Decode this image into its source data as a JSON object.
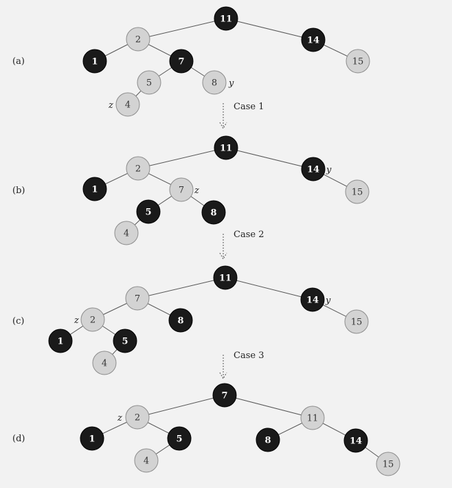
{
  "panels": [
    {
      "label": "(a)",
      "nodes": [
        {
          "id": "n11",
          "key": "11",
          "color": "black"
        },
        {
          "id": "n2",
          "key": "2",
          "color": "red"
        },
        {
          "id": "n14",
          "key": "14",
          "color": "black"
        },
        {
          "id": "n1",
          "key": "1",
          "color": "black"
        },
        {
          "id": "n7",
          "key": "7",
          "color": "black"
        },
        {
          "id": "n15",
          "key": "15",
          "color": "red"
        },
        {
          "id": "n5",
          "key": "5",
          "color": "red"
        },
        {
          "id": "n8",
          "key": "8",
          "color": "red",
          "tag": "y"
        },
        {
          "id": "n4",
          "key": "4",
          "color": "red",
          "tag": "z"
        }
      ],
      "edges": [
        [
          "n11",
          "n2"
        ],
        [
          "n11",
          "n14"
        ],
        [
          "n2",
          "n1"
        ],
        [
          "n2",
          "n7"
        ],
        [
          "n14",
          "n15"
        ],
        [
          "n7",
          "n5"
        ],
        [
          "n7",
          "n8"
        ],
        [
          "n5",
          "n4"
        ]
      ]
    },
    {
      "label": "(b)",
      "nodes": [
        {
          "id": "n11",
          "key": "11",
          "color": "black"
        },
        {
          "id": "n2",
          "key": "2",
          "color": "red"
        },
        {
          "id": "n14",
          "key": "14",
          "color": "black",
          "tag": "y"
        },
        {
          "id": "n1",
          "key": "1",
          "color": "black"
        },
        {
          "id": "n7",
          "key": "7",
          "color": "red",
          "tag": "z"
        },
        {
          "id": "n15",
          "key": "15",
          "color": "red"
        },
        {
          "id": "n5",
          "key": "5",
          "color": "black"
        },
        {
          "id": "n8",
          "key": "8",
          "color": "black"
        },
        {
          "id": "n4",
          "key": "4",
          "color": "red"
        }
      ],
      "edges": [
        [
          "n11",
          "n2"
        ],
        [
          "n11",
          "n14"
        ],
        [
          "n2",
          "n1"
        ],
        [
          "n2",
          "n7"
        ],
        [
          "n14",
          "n15"
        ],
        [
          "n7",
          "n5"
        ],
        [
          "n7",
          "n8"
        ],
        [
          "n5",
          "n4"
        ]
      ]
    },
    {
      "label": "(c)",
      "nodes": [
        {
          "id": "n11",
          "key": "11",
          "color": "black"
        },
        {
          "id": "n7",
          "key": "7",
          "color": "red"
        },
        {
          "id": "n14",
          "key": "14",
          "color": "black",
          "tag": "y"
        },
        {
          "id": "n2",
          "key": "2",
          "color": "red",
          "tag": "z"
        },
        {
          "id": "n8",
          "key": "8",
          "color": "black"
        },
        {
          "id": "n15",
          "key": "15",
          "color": "red"
        },
        {
          "id": "n1",
          "key": "1",
          "color": "black"
        },
        {
          "id": "n5",
          "key": "5",
          "color": "black"
        },
        {
          "id": "n4",
          "key": "4",
          "color": "red"
        }
      ],
      "edges": [
        [
          "n11",
          "n7"
        ],
        [
          "n11",
          "n14"
        ],
        [
          "n7",
          "n2"
        ],
        [
          "n7",
          "n8"
        ],
        [
          "n14",
          "n15"
        ],
        [
          "n2",
          "n1"
        ],
        [
          "n2",
          "n5"
        ],
        [
          "n5",
          "n4"
        ]
      ]
    },
    {
      "label": "(d)",
      "nodes": [
        {
          "id": "n7",
          "key": "7",
          "color": "black"
        },
        {
          "id": "n2",
          "key": "2",
          "color": "red",
          "tag": "z"
        },
        {
          "id": "n11",
          "key": "11",
          "color": "red"
        },
        {
          "id": "n1",
          "key": "1",
          "color": "black"
        },
        {
          "id": "n5",
          "key": "5",
          "color": "black"
        },
        {
          "id": "n8",
          "key": "8",
          "color": "black"
        },
        {
          "id": "n14",
          "key": "14",
          "color": "black"
        },
        {
          "id": "n4",
          "key": "4",
          "color": "red"
        },
        {
          "id": "n15",
          "key": "15",
          "color": "red"
        }
      ],
      "edges": [
        [
          "n7",
          "n2"
        ],
        [
          "n7",
          "n11"
        ],
        [
          "n2",
          "n1"
        ],
        [
          "n2",
          "n5"
        ],
        [
          "n11",
          "n8"
        ],
        [
          "n11",
          "n14"
        ],
        [
          "n5",
          "n4"
        ],
        [
          "n14",
          "n15"
        ]
      ]
    }
  ],
  "transitions": [
    {
      "label": "Case 1"
    },
    {
      "label": "Case 2"
    },
    {
      "label": "Case 3"
    }
  ]
}
